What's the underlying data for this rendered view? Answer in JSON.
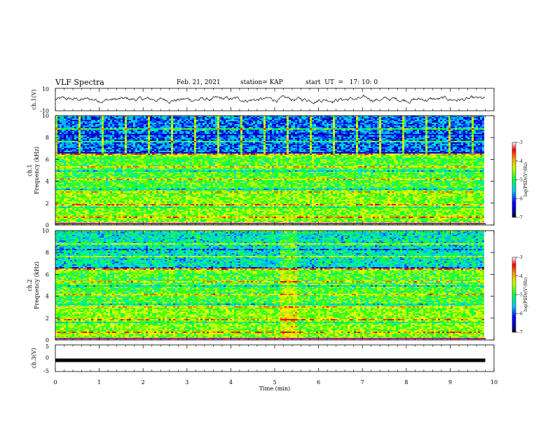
{
  "header": {
    "title": "VLF Spectra",
    "date": "Feb. 21, 2021",
    "station": "station= KAP",
    "start": "start  UT  =   17: 10: 0"
  },
  "chart_data": [
    {
      "type": "line",
      "name": "ch1-waveform",
      "ylabel": "ch.1(V)",
      "ylim": [
        -10,
        10
      ],
      "yticks": [
        "10",
        "-10"
      ],
      "xlim": [
        0,
        10
      ],
      "data_end_min": 9.8,
      "color": "#000000"
    },
    {
      "type": "heatmap",
      "name": "ch1-spectrogram",
      "ylabel_top": "ch.1",
      "ylabel": "Frequency (kHz)",
      "ylim": [
        0,
        10
      ],
      "yticks": [
        "0",
        "2",
        "4",
        "6",
        "8",
        "10"
      ],
      "xlim": [
        0,
        10
      ],
      "data_end_min": 9.8,
      "colorbar": {
        "label": "log(PSD)(V²/Hz)",
        "range": [
          -7,
          -3
        ],
        "ticks": [
          "-3",
          "-4",
          "-5",
          "-6",
          "-7"
        ]
      }
    },
    {
      "type": "heatmap",
      "name": "ch2-spectrogram",
      "ylabel_top": "ch.2",
      "ylabel": "Frequency (kHz)",
      "ylim": [
        0,
        10
      ],
      "yticks": [
        "0",
        "2",
        "4",
        "6",
        "8",
        "10"
      ],
      "xlim": [
        0,
        10
      ],
      "data_end_min": 9.8,
      "colorbar": {
        "label": "log(PSD)(V²/Hz)",
        "range": [
          -7,
          -3
        ],
        "ticks": [
          "-3",
          "-4",
          "-5",
          "-6",
          "-7"
        ]
      }
    },
    {
      "type": "line",
      "name": "ch3-waveform",
      "ylabel": "ch.3(V)",
      "ylim": [
        -5,
        5
      ],
      "yticks": [
        "5",
        "0",
        "-5"
      ],
      "constant_value": -0.8,
      "xlim": [
        0,
        10
      ],
      "data_end_min": 9.8,
      "color": "#000000"
    }
  ],
  "xaxis": {
    "label": "Time  (min)",
    "ticks": [
      "0",
      "1",
      "2",
      "3",
      "4",
      "5",
      "6",
      "7",
      "8",
      "9",
      "10"
    ]
  }
}
